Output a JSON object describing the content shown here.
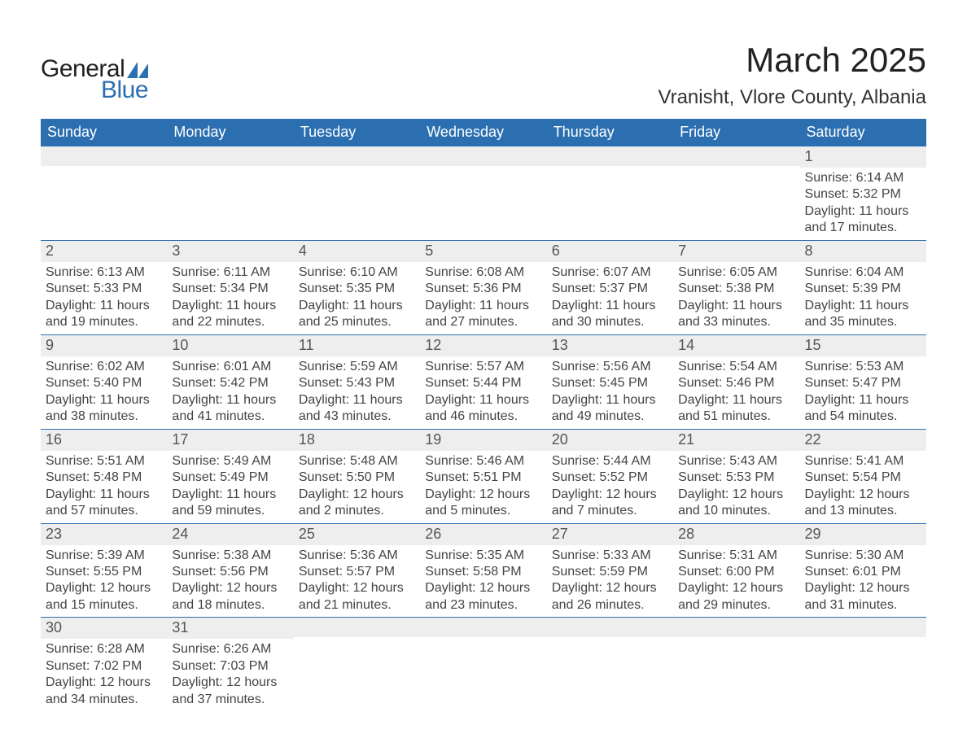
{
  "brand": {
    "text1": "General",
    "text2": "Blue",
    "icon_color": "#2b6fb0"
  },
  "title": "March 2025",
  "location": "Vranisht, Vlore County, Albania",
  "colors": {
    "header_bg": "#2b6fb0",
    "header_text": "#ffffff",
    "row_divider": "#2b6fb0",
    "daynum_bg": "#eeeeee",
    "body_text": "#444444",
    "page_bg": "#ffffff"
  },
  "typography": {
    "title_fontsize": 42,
    "location_fontsize": 24,
    "weekday_fontsize": 18,
    "daynum_fontsize": 18,
    "body_fontsize": 16
  },
  "weekdays": [
    "Sunday",
    "Monday",
    "Tuesday",
    "Wednesday",
    "Thursday",
    "Friday",
    "Saturday"
  ],
  "labels": {
    "sunrise": "Sunrise:",
    "sunset": "Sunset:",
    "daylight": "Daylight:"
  },
  "weeks": [
    [
      {
        "empty": true
      },
      {
        "empty": true
      },
      {
        "empty": true
      },
      {
        "empty": true
      },
      {
        "empty": true
      },
      {
        "empty": true
      },
      {
        "day": "1",
        "sunrise": "6:14 AM",
        "sunset": "5:32 PM",
        "daylight": "11 hours and 17 minutes."
      }
    ],
    [
      {
        "day": "2",
        "sunrise": "6:13 AM",
        "sunset": "5:33 PM",
        "daylight": "11 hours and 19 minutes."
      },
      {
        "day": "3",
        "sunrise": "6:11 AM",
        "sunset": "5:34 PM",
        "daylight": "11 hours and 22 minutes."
      },
      {
        "day": "4",
        "sunrise": "6:10 AM",
        "sunset": "5:35 PM",
        "daylight": "11 hours and 25 minutes."
      },
      {
        "day": "5",
        "sunrise": "6:08 AM",
        "sunset": "5:36 PM",
        "daylight": "11 hours and 27 minutes."
      },
      {
        "day": "6",
        "sunrise": "6:07 AM",
        "sunset": "5:37 PM",
        "daylight": "11 hours and 30 minutes."
      },
      {
        "day": "7",
        "sunrise": "6:05 AM",
        "sunset": "5:38 PM",
        "daylight": "11 hours and 33 minutes."
      },
      {
        "day": "8",
        "sunrise": "6:04 AM",
        "sunset": "5:39 PM",
        "daylight": "11 hours and 35 minutes."
      }
    ],
    [
      {
        "day": "9",
        "sunrise": "6:02 AM",
        "sunset": "5:40 PM",
        "daylight": "11 hours and 38 minutes."
      },
      {
        "day": "10",
        "sunrise": "6:01 AM",
        "sunset": "5:42 PM",
        "daylight": "11 hours and 41 minutes."
      },
      {
        "day": "11",
        "sunrise": "5:59 AM",
        "sunset": "5:43 PM",
        "daylight": "11 hours and 43 minutes."
      },
      {
        "day": "12",
        "sunrise": "5:57 AM",
        "sunset": "5:44 PM",
        "daylight": "11 hours and 46 minutes."
      },
      {
        "day": "13",
        "sunrise": "5:56 AM",
        "sunset": "5:45 PM",
        "daylight": "11 hours and 49 minutes."
      },
      {
        "day": "14",
        "sunrise": "5:54 AM",
        "sunset": "5:46 PM",
        "daylight": "11 hours and 51 minutes."
      },
      {
        "day": "15",
        "sunrise": "5:53 AM",
        "sunset": "5:47 PM",
        "daylight": "11 hours and 54 minutes."
      }
    ],
    [
      {
        "day": "16",
        "sunrise": "5:51 AM",
        "sunset": "5:48 PM",
        "daylight": "11 hours and 57 minutes."
      },
      {
        "day": "17",
        "sunrise": "5:49 AM",
        "sunset": "5:49 PM",
        "daylight": "11 hours and 59 minutes."
      },
      {
        "day": "18",
        "sunrise": "5:48 AM",
        "sunset": "5:50 PM",
        "daylight": "12 hours and 2 minutes."
      },
      {
        "day": "19",
        "sunrise": "5:46 AM",
        "sunset": "5:51 PM",
        "daylight": "12 hours and 5 minutes."
      },
      {
        "day": "20",
        "sunrise": "5:44 AM",
        "sunset": "5:52 PM",
        "daylight": "12 hours and 7 minutes."
      },
      {
        "day": "21",
        "sunrise": "5:43 AM",
        "sunset": "5:53 PM",
        "daylight": "12 hours and 10 minutes."
      },
      {
        "day": "22",
        "sunrise": "5:41 AM",
        "sunset": "5:54 PM",
        "daylight": "12 hours and 13 minutes."
      }
    ],
    [
      {
        "day": "23",
        "sunrise": "5:39 AM",
        "sunset": "5:55 PM",
        "daylight": "12 hours and 15 minutes."
      },
      {
        "day": "24",
        "sunrise": "5:38 AM",
        "sunset": "5:56 PM",
        "daylight": "12 hours and 18 minutes."
      },
      {
        "day": "25",
        "sunrise": "5:36 AM",
        "sunset": "5:57 PM",
        "daylight": "12 hours and 21 minutes."
      },
      {
        "day": "26",
        "sunrise": "5:35 AM",
        "sunset": "5:58 PM",
        "daylight": "12 hours and 23 minutes."
      },
      {
        "day": "27",
        "sunrise": "5:33 AM",
        "sunset": "5:59 PM",
        "daylight": "12 hours and 26 minutes."
      },
      {
        "day": "28",
        "sunrise": "5:31 AM",
        "sunset": "6:00 PM",
        "daylight": "12 hours and 29 minutes."
      },
      {
        "day": "29",
        "sunrise": "5:30 AM",
        "sunset": "6:01 PM",
        "daylight": "12 hours and 31 minutes."
      }
    ],
    [
      {
        "day": "30",
        "sunrise": "6:28 AM",
        "sunset": "7:02 PM",
        "daylight": "12 hours and 34 minutes."
      },
      {
        "day": "31",
        "sunrise": "6:26 AM",
        "sunset": "7:03 PM",
        "daylight": "12 hours and 37 minutes."
      },
      {
        "empty": true
      },
      {
        "empty": true
      },
      {
        "empty": true
      },
      {
        "empty": true
      },
      {
        "empty": true
      }
    ]
  ]
}
